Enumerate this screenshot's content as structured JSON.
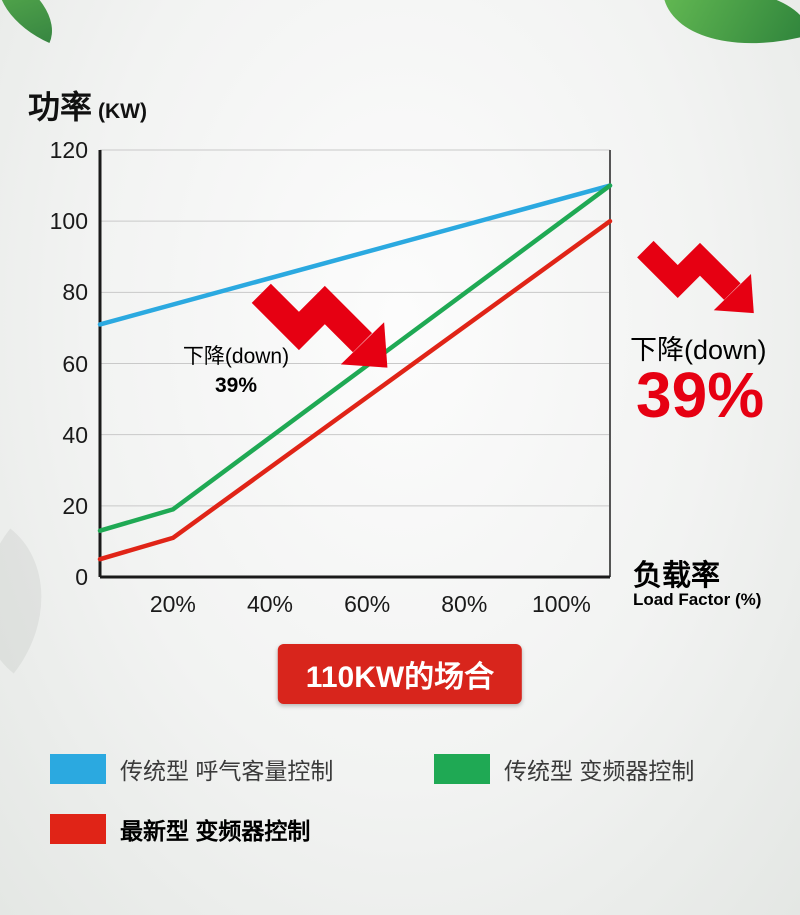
{
  "chart_data": {
    "type": "line",
    "title": "功率",
    "title_unit": "(KW)",
    "xlabel": "负载率",
    "xlabel_sub": "Load Factor (%)",
    "x_range": [
      5,
      110
    ],
    "y_range": [
      0,
      120
    ],
    "y_ticks": [
      0,
      20,
      40,
      60,
      80,
      100,
      120
    ],
    "x_tick_values": [
      20,
      40,
      60,
      80,
      100
    ],
    "x_tick_labels": [
      "20%",
      "40%",
      "60%",
      "80%",
      "100%"
    ],
    "grid": true,
    "legend_position": "bottom",
    "series": [
      {
        "name": "传统型 呼气客量控制",
        "color": "#2ba9e0",
        "points": [
          [
            5,
            71
          ],
          [
            110,
            110
          ]
        ]
      },
      {
        "name": "传统型 变频器控制",
        "color": "#1fa954",
        "points": [
          [
            5,
            13
          ],
          [
            20,
            19
          ],
          [
            110,
            110
          ]
        ]
      },
      {
        "name": "最新型 变频器控制",
        "color": "#e02417",
        "points": [
          [
            5,
            5
          ],
          [
            20,
            11
          ],
          [
            110,
            100
          ]
        ]
      }
    ],
    "annotation_inchart": {
      "label": "下降(down)",
      "value": "39%"
    },
    "annotation_side": {
      "label": "下降(down)",
      "value": "39%"
    }
  },
  "badge": {
    "label": "110KW的场合"
  },
  "colors": {
    "arrow_red": "#e60012",
    "badge_red": "#d8251c",
    "big_percent_red": "#e60012",
    "grid_gray": "#c9c9c9",
    "axis_black": "#1a1a1a"
  }
}
